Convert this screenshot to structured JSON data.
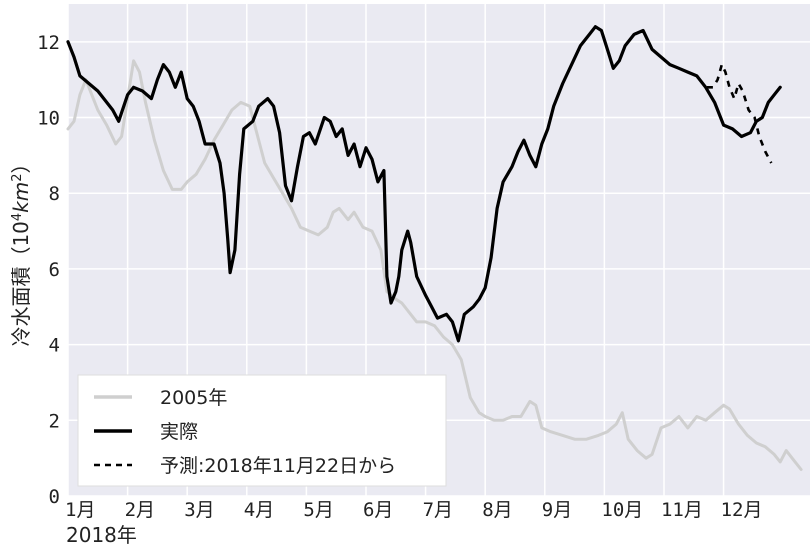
{
  "chart_data": {
    "type": "line",
    "title": "",
    "xlabel": "2018年",
    "ylabel": "冷水面積（10⁴km²）",
    "ylabel_main": "冷水面積（10",
    "ylabel_sup": "4",
    "ylabel_mid": "km",
    "ylabel_sup2": "2",
    "ylabel_end": "）",
    "xlim": [
      0,
      12.45
    ],
    "ylim": [
      0,
      13
    ],
    "x_ticks": [
      {
        "v": 0,
        "label": "1月"
      },
      {
        "v": 1,
        "label": "2月"
      },
      {
        "v": 2,
        "label": "3月"
      },
      {
        "v": 3,
        "label": "4月"
      },
      {
        "v": 4,
        "label": "5月"
      },
      {
        "v": 5,
        "label": "6月"
      },
      {
        "v": 6,
        "label": "7月"
      },
      {
        "v": 7,
        "label": "8月"
      },
      {
        "v": 8,
        "label": "9月"
      },
      {
        "v": 9,
        "label": "10月"
      },
      {
        "v": 10,
        "label": "11月"
      },
      {
        "v": 11,
        "label": "12月"
      }
    ],
    "y_ticks": [
      0,
      2,
      4,
      6,
      8,
      10,
      12
    ],
    "grid": true,
    "legend_position": "bottom-left",
    "series": [
      {
        "name": "2005年",
        "color": "#cfcfcf",
        "style": "solid",
        "points": [
          [
            0.0,
            9.7
          ],
          [
            0.1,
            9.9
          ],
          [
            0.2,
            10.6
          ],
          [
            0.3,
            11.0
          ],
          [
            0.4,
            10.6
          ],
          [
            0.5,
            10.2
          ],
          [
            0.65,
            9.8
          ],
          [
            0.8,
            9.3
          ],
          [
            0.9,
            9.5
          ],
          [
            1.0,
            10.5
          ],
          [
            1.1,
            11.5
          ],
          [
            1.2,
            11.2
          ],
          [
            1.3,
            10.4
          ],
          [
            1.45,
            9.4
          ],
          [
            1.6,
            8.6
          ],
          [
            1.75,
            8.1
          ],
          [
            1.9,
            8.1
          ],
          [
            2.0,
            8.3
          ],
          [
            2.15,
            8.5
          ],
          [
            2.3,
            8.9
          ],
          [
            2.45,
            9.4
          ],
          [
            2.6,
            9.8
          ],
          [
            2.75,
            10.2
          ],
          [
            2.9,
            10.4
          ],
          [
            3.05,
            10.3
          ],
          [
            3.15,
            9.7
          ],
          [
            3.3,
            8.8
          ],
          [
            3.45,
            8.4
          ],
          [
            3.6,
            8.0
          ],
          [
            3.75,
            7.6
          ],
          [
            3.9,
            7.1
          ],
          [
            4.05,
            7.0
          ],
          [
            4.2,
            6.9
          ],
          [
            4.35,
            7.1
          ],
          [
            4.45,
            7.5
          ],
          [
            4.55,
            7.6
          ],
          [
            4.7,
            7.3
          ],
          [
            4.8,
            7.5
          ],
          [
            4.95,
            7.1
          ],
          [
            5.1,
            7.0
          ],
          [
            5.25,
            6.5
          ],
          [
            5.35,
            5.4
          ],
          [
            5.5,
            5.2
          ],
          [
            5.6,
            5.1
          ],
          [
            5.75,
            4.8
          ],
          [
            5.85,
            4.6
          ],
          [
            6.0,
            4.6
          ],
          [
            6.15,
            4.5
          ],
          [
            6.3,
            4.2
          ],
          [
            6.45,
            4.0
          ],
          [
            6.6,
            3.6
          ],
          [
            6.75,
            2.6
          ],
          [
            6.9,
            2.2
          ],
          [
            7.0,
            2.1
          ],
          [
            7.15,
            2.0
          ],
          [
            7.3,
            2.0
          ],
          [
            7.45,
            2.1
          ],
          [
            7.6,
            2.1
          ],
          [
            7.75,
            2.5
          ],
          [
            7.85,
            2.4
          ],
          [
            7.95,
            1.8
          ],
          [
            8.1,
            1.7
          ],
          [
            8.3,
            1.6
          ],
          [
            8.5,
            1.5
          ],
          [
            8.7,
            1.5
          ],
          [
            8.9,
            1.6
          ],
          [
            9.05,
            1.7
          ],
          [
            9.2,
            1.9
          ],
          [
            9.3,
            2.2
          ],
          [
            9.4,
            1.5
          ],
          [
            9.55,
            1.2
          ],
          [
            9.7,
            1.0
          ],
          [
            9.8,
            1.1
          ],
          [
            9.95,
            1.8
          ],
          [
            10.1,
            1.9
          ],
          [
            10.25,
            2.1
          ],
          [
            10.4,
            1.8
          ],
          [
            10.55,
            2.1
          ],
          [
            10.7,
            2.0
          ],
          [
            10.85,
            2.2
          ],
          [
            11.0,
            2.4
          ],
          [
            11.1,
            2.3
          ],
          [
            11.25,
            1.9
          ],
          [
            11.4,
            1.6
          ],
          [
            11.55,
            1.4
          ],
          [
            11.7,
            1.3
          ],
          [
            11.85,
            1.1
          ],
          [
            11.95,
            0.9
          ],
          [
            12.05,
            1.2
          ],
          [
            12.2,
            0.9
          ],
          [
            12.3,
            0.7
          ]
        ]
      },
      {
        "name": "実際",
        "color": "#000000",
        "style": "solid",
        "points": [
          [
            0.0,
            12.0
          ],
          [
            0.1,
            11.6
          ],
          [
            0.2,
            11.1
          ],
          [
            0.35,
            10.9
          ],
          [
            0.5,
            10.7
          ],
          [
            0.6,
            10.5
          ],
          [
            0.75,
            10.2
          ],
          [
            0.85,
            9.9
          ],
          [
            1.0,
            10.6
          ],
          [
            1.1,
            10.8
          ],
          [
            1.25,
            10.7
          ],
          [
            1.4,
            10.5
          ],
          [
            1.5,
            11.0
          ],
          [
            1.6,
            11.4
          ],
          [
            1.7,
            11.2
          ],
          [
            1.8,
            10.8
          ],
          [
            1.9,
            11.2
          ],
          [
            2.0,
            10.5
          ],
          [
            2.1,
            10.3
          ],
          [
            2.2,
            9.9
          ],
          [
            2.3,
            9.3
          ],
          [
            2.45,
            9.3
          ],
          [
            2.55,
            8.8
          ],
          [
            2.62,
            8.0
          ],
          [
            2.68,
            6.8
          ],
          [
            2.72,
            5.9
          ],
          [
            2.8,
            6.5
          ],
          [
            2.88,
            8.5
          ],
          [
            2.95,
            9.7
          ],
          [
            3.1,
            9.9
          ],
          [
            3.2,
            10.3
          ],
          [
            3.35,
            10.5
          ],
          [
            3.45,
            10.3
          ],
          [
            3.55,
            9.6
          ],
          [
            3.65,
            8.2
          ],
          [
            3.75,
            7.8
          ],
          [
            3.85,
            8.7
          ],
          [
            3.95,
            9.5
          ],
          [
            4.05,
            9.6
          ],
          [
            4.15,
            9.3
          ],
          [
            4.3,
            10.0
          ],
          [
            4.4,
            9.9
          ],
          [
            4.5,
            9.5
          ],
          [
            4.6,
            9.7
          ],
          [
            4.7,
            9.0
          ],
          [
            4.8,
            9.3
          ],
          [
            4.9,
            8.7
          ],
          [
            5.0,
            9.2
          ],
          [
            5.1,
            8.9
          ],
          [
            5.2,
            8.3
          ],
          [
            5.3,
            8.6
          ],
          [
            5.35,
            5.8
          ],
          [
            5.42,
            5.1
          ],
          [
            5.5,
            5.4
          ],
          [
            5.55,
            5.8
          ],
          [
            5.6,
            6.5
          ],
          [
            5.7,
            7.0
          ],
          [
            5.75,
            6.7
          ],
          [
            5.85,
            5.8
          ],
          [
            6.0,
            5.3
          ],
          [
            6.1,
            5.0
          ],
          [
            6.2,
            4.7
          ],
          [
            6.35,
            4.8
          ],
          [
            6.45,
            4.6
          ],
          [
            6.55,
            4.1
          ],
          [
            6.65,
            4.8
          ],
          [
            6.8,
            5.0
          ],
          [
            6.9,
            5.2
          ],
          [
            7.0,
            5.5
          ],
          [
            7.1,
            6.3
          ],
          [
            7.2,
            7.6
          ],
          [
            7.3,
            8.3
          ],
          [
            7.45,
            8.7
          ],
          [
            7.55,
            9.1
          ],
          [
            7.65,
            9.4
          ],
          [
            7.75,
            9.0
          ],
          [
            7.85,
            8.7
          ],
          [
            7.95,
            9.3
          ],
          [
            8.05,
            9.7
          ],
          [
            8.15,
            10.3
          ],
          [
            8.3,
            10.9
          ],
          [
            8.45,
            11.4
          ],
          [
            8.6,
            11.9
          ],
          [
            8.75,
            12.2
          ],
          [
            8.85,
            12.4
          ],
          [
            8.95,
            12.3
          ],
          [
            9.05,
            11.8
          ],
          [
            9.15,
            11.3
          ],
          [
            9.25,
            11.5
          ],
          [
            9.35,
            11.9
          ],
          [
            9.5,
            12.2
          ],
          [
            9.65,
            12.3
          ],
          [
            9.8,
            11.8
          ],
          [
            9.95,
            11.6
          ],
          [
            10.1,
            11.4
          ],
          [
            10.25,
            11.3
          ],
          [
            10.4,
            11.2
          ],
          [
            10.55,
            11.1
          ],
          [
            10.7,
            10.8
          ],
          [
            10.85,
            10.4
          ],
          [
            11.0,
            9.8
          ],
          [
            11.15,
            9.7
          ],
          [
            11.3,
            9.5
          ],
          [
            11.45,
            9.6
          ],
          [
            11.55,
            9.9
          ],
          [
            11.65,
            10.0
          ],
          [
            11.75,
            10.4
          ],
          [
            11.85,
            10.6
          ],
          [
            11.95,
            10.8
          ]
        ]
      },
      {
        "name": "予測:2018年11月22日から",
        "color": "#000000",
        "style": "dashed",
        "points": [
          [
            10.72,
            10.8
          ],
          [
            10.82,
            10.8
          ],
          [
            10.9,
            11.0
          ],
          [
            10.97,
            11.4
          ],
          [
            11.03,
            11.2
          ],
          [
            11.1,
            10.8
          ],
          [
            11.18,
            10.5
          ],
          [
            11.25,
            10.9
          ],
          [
            11.32,
            10.7
          ],
          [
            11.42,
            10.2
          ],
          [
            11.52,
            10.0
          ],
          [
            11.6,
            9.5
          ],
          [
            11.7,
            9.1
          ],
          [
            11.8,
            8.8
          ]
        ]
      }
    ]
  }
}
